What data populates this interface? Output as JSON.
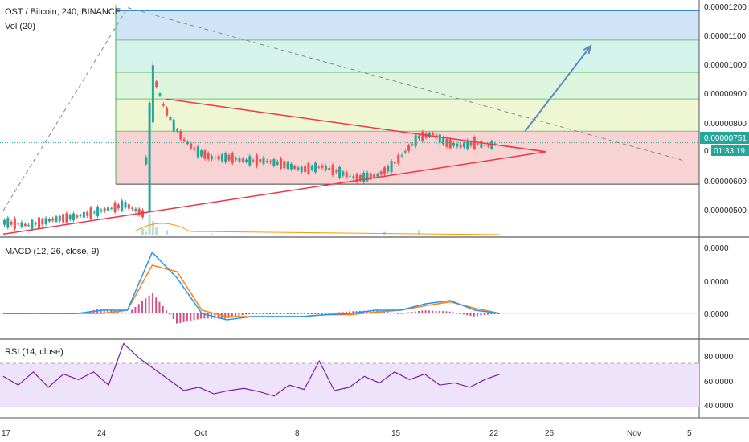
{
  "header": {
    "symbol": "OST / Bitcoin, 240, BINANCE",
    "volume": "Vol (20)"
  },
  "colors": {
    "up": "#26a69a",
    "down": "#ef5350",
    "triangle": "#f23645",
    "arrow": "#5b8bc0",
    "macd": "#2196f3",
    "signal": "#ff7f0e",
    "hist": "#c2185b",
    "rsi": "#7b1fa2",
    "rsi_band": "#efe3fb",
    "price_tag": "#26a69a"
  },
  "fib_bands": [
    {
      "from": 1.1e-05,
      "to": 1.2e-05,
      "color": "#cfe5f7"
    },
    {
      "from": 9.9e-06,
      "to": 1.1e-05,
      "color": "#d4f3ea"
    },
    {
      "from": 9e-06,
      "to": 9.9e-06,
      "color": "#dcf5dc"
    },
    {
      "from": 7.9e-06,
      "to": 9e-06,
      "color": "#eef6d4"
    },
    {
      "from": 6.1e-06,
      "to": 7.9e-06,
      "color": "#f7d3d3"
    }
  ],
  "price_axis": {
    "ticks": [
      "0.00001200",
      "0.00001100",
      "0.00001000",
      "0.00000900",
      "0.00000800",
      "0.00000600",
      "0.00000500"
    ],
    "last_price": "0.00000751",
    "countdown": "01:33:19",
    "partial_tick": "0"
  },
  "macd_panel": {
    "title": "MACD (12, 26, close, 9)",
    "ticks": [
      "0.0000",
      "0.0000",
      "0.0000"
    ]
  },
  "rsi_panel": {
    "title": "RSI (14, close)",
    "ticks": [
      "80.0000",
      "60.0000",
      "40.0000"
    ],
    "upper": 70,
    "lower": 30
  },
  "time_axis": {
    "labels": [
      "17",
      "24",
      "Oct",
      "8",
      "15",
      "22",
      "26",
      "Nov",
      "5"
    ]
  },
  "chart_data": {
    "type": "candlestick",
    "symbol": "OST / Bitcoin, 240, BINANCE",
    "timeframe": "240",
    "x_labels": [
      "17",
      "24",
      "Oct",
      "8",
      "15",
      "22",
      "26",
      "Nov",
      "5"
    ],
    "price": {
      "ylim": [
        4.3e-06,
        1.22e-05
      ],
      "ticks": [
        1.2e-05,
        1.1e-05,
        1e-05,
        9e-06,
        8e-06,
        6e-06,
        5e-06
      ],
      "last_price": 7.51e-06,
      "countdown": "01:33:19",
      "series": [
        {
          "t": 0,
          "close": 4.8e-06
        },
        {
          "t": 7,
          "close": 4.7e-06
        },
        {
          "t": 14,
          "close": 4.9e-06
        },
        {
          "t": 21,
          "close": 5e-06
        },
        {
          "t": 28,
          "close": 5.2e-06
        },
        {
          "t": 35,
          "close": 5.4e-06
        },
        {
          "t": 40,
          "close": 5.1e-06
        },
        {
          "t": 42,
          "close": 8.7e-06
        },
        {
          "t": 43,
          "close": 1.01e-05
        },
        {
          "t": 44,
          "close": 9.5e-06
        },
        {
          "t": 46,
          "close": 8.8e-06
        },
        {
          "t": 49,
          "close": 8.1e-06
        },
        {
          "t": 52,
          "close": 7.6e-06
        },
        {
          "t": 56,
          "close": 7.2e-06
        },
        {
          "t": 60,
          "close": 7e-06
        },
        {
          "t": 65,
          "close": 7e-06
        },
        {
          "t": 70,
          "close": 6.9e-06
        },
        {
          "t": 75,
          "close": 6.9e-06
        },
        {
          "t": 80,
          "close": 6.8e-06
        },
        {
          "t": 86,
          "close": 6.6e-06
        },
        {
          "t": 92,
          "close": 6.7e-06
        },
        {
          "t": 97,
          "close": 6.5e-06
        },
        {
          "t": 102,
          "close": 6.3e-06
        },
        {
          "t": 108,
          "close": 6.4e-06
        },
        {
          "t": 112,
          "close": 6.7e-06
        },
        {
          "t": 116,
          "close": 7.2e-06
        },
        {
          "t": 120,
          "close": 7.7e-06
        },
        {
          "t": 124,
          "close": 7.8e-06
        },
        {
          "t": 128,
          "close": 7.5e-06
        },
        {
          "t": 132,
          "close": 7.4e-06
        },
        {
          "t": 136,
          "close": 7.5e-06
        },
        {
          "t": 140,
          "close": 7.4e-06
        },
        {
          "t": 143,
          "close": 7.5e-06
        }
      ]
    },
    "volume": {
      "title": "Vol (20)",
      "values": [
        {
          "t": 40,
          "v": 4
        },
        {
          "t": 41,
          "v": 2
        },
        {
          "t": 42,
          "v": 12
        },
        {
          "t": 43,
          "v": 8
        },
        {
          "t": 44,
          "v": 5
        },
        {
          "t": 47,
          "v": 3
        },
        {
          "t": 60,
          "v": 1
        },
        {
          "t": 110,
          "v": 2
        },
        {
          "t": 120,
          "v": 3
        }
      ]
    },
    "annotations": {
      "triangle": {
        "apex_t": 157,
        "upper_start": [
          47,
          9e-06
        ],
        "lower_start": [
          0,
          4.4e-06
        ],
        "apex_price": 7.2e-06
      },
      "projection_arrow": {
        "from": [
          151,
          7.9e-06
        ],
        "to": [
          170,
          1.08e-05
        ]
      },
      "dashed_trend_down": {
        "from": [
          36,
          1.21e-05
        ],
        "to": [
          197,
          6.9e-06
        ]
      },
      "dashed_trend_up": {
        "from": [
          0,
          5.2e-06
        ],
        "to": [
          36,
          1.21e-05
        ]
      }
    },
    "macd": {
      "title": "MACD (12, 26, close, 9)",
      "macd": [
        0,
        0,
        0,
        0,
        0.05,
        0.05,
        0.95,
        0.55,
        0,
        -0.1,
        -0.05,
        -0.05,
        -0.05,
        -0.02,
        0,
        0.05,
        0.05,
        0.15,
        0.2,
        0.05,
        0
      ],
      "signal": [
        0,
        0,
        0,
        0,
        0,
        0.05,
        0.75,
        0.65,
        0.05,
        -0.05,
        -0.05,
        -0.05,
        -0.05,
        -0.02,
        -0.02,
        0.02,
        0.05,
        0.12,
        0.18,
        0.08,
        0
      ]
    },
    "rsi": {
      "title": "RSI (14, close)",
      "overbought": 70,
      "oversold": 30,
      "values": [
        58,
        50,
        62,
        48,
        60,
        55,
        62,
        50,
        88,
        75,
        65,
        55,
        45,
        48,
        42,
        45,
        47,
        44,
        40,
        50,
        46,
        72,
        45,
        48,
        58,
        52,
        62,
        55,
        60,
        50,
        52,
        48,
        55,
        60
      ]
    }
  }
}
